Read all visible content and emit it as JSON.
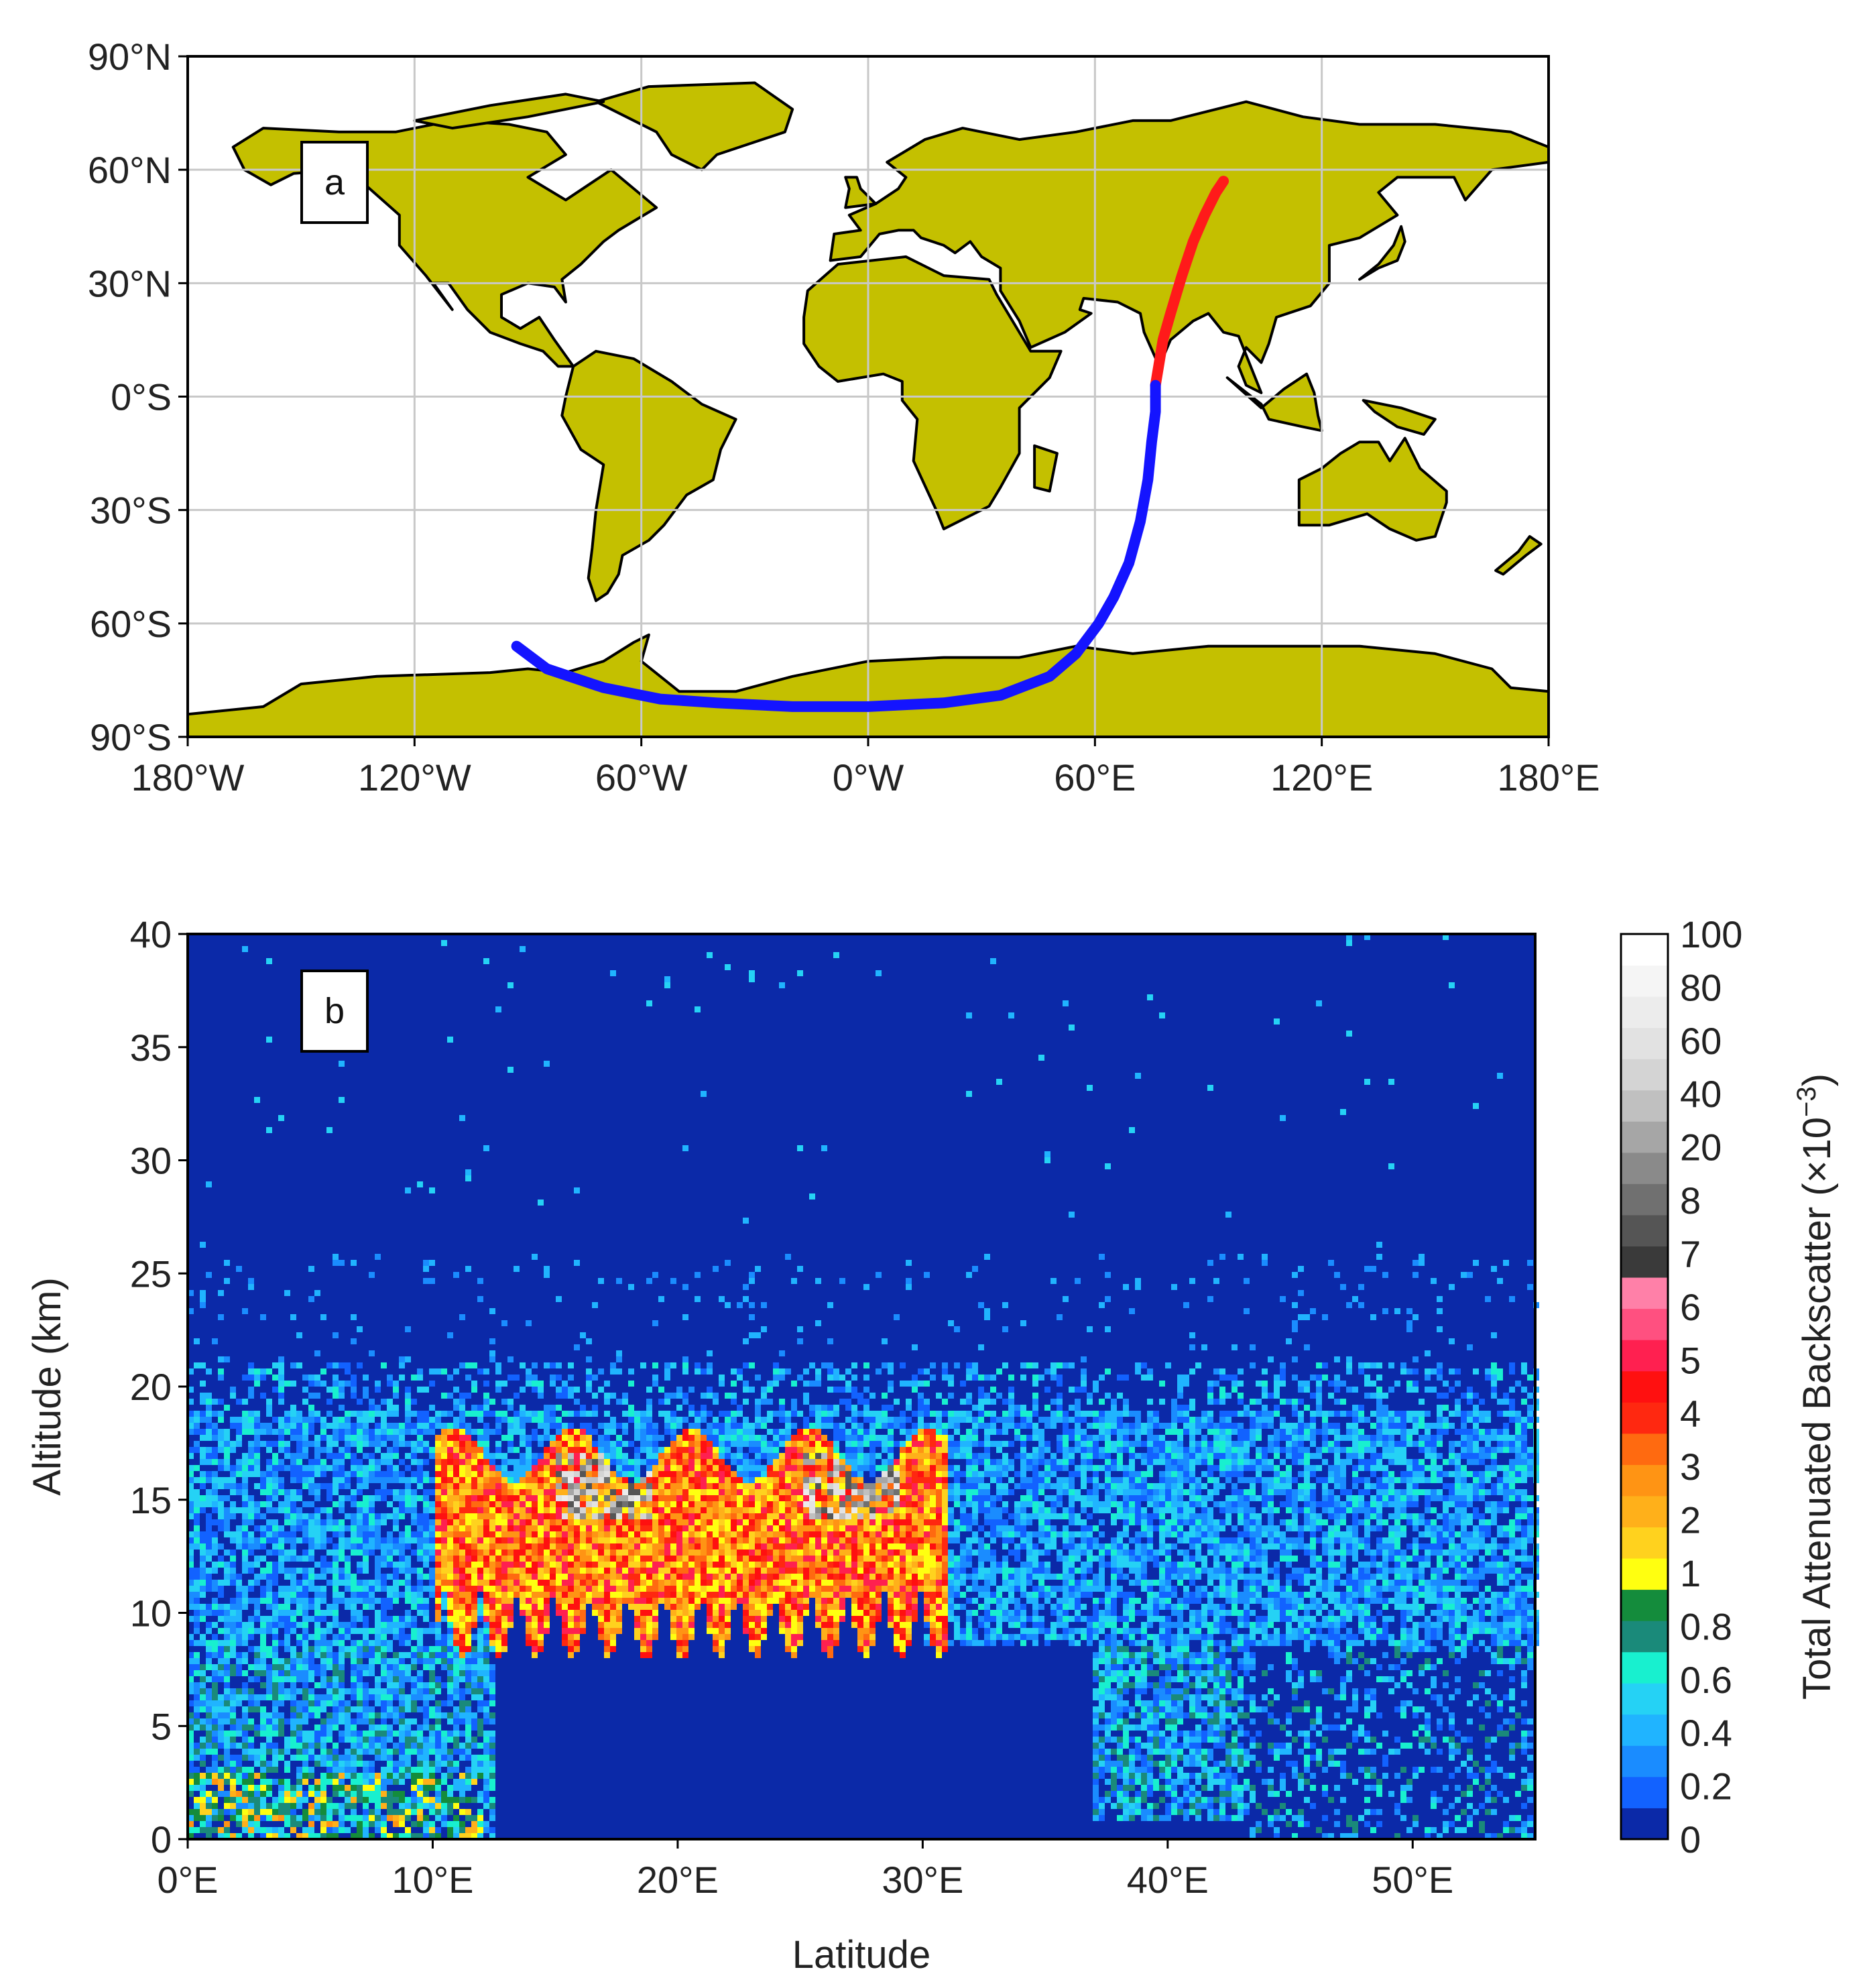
{
  "colors": {
    "land": "#c4c000",
    "coast": "#000000",
    "grid": "#c8c8c8",
    "track_day": "#ff1a1a",
    "track_night": "#1414ff",
    "background_dark": "#0b29a8"
  },
  "chart_data": [
    {
      "type": "map",
      "panel_label": "a",
      "x_ticks": [
        "180°W",
        "120°W",
        "60°W",
        "0°W",
        "60°E",
        "120°E",
        "180°E"
      ],
      "y_ticks": [
        "90°N",
        "60°N",
        "30°N",
        "0°S",
        "30°S",
        "60°S",
        "90°S"
      ],
      "xlim": [
        -180,
        180
      ],
      "ylim": [
        -90,
        90
      ],
      "grid": true,
      "series": [
        {
          "color": "red",
          "points": [
            [
              76,
              3
            ],
            [
              78,
              15
            ],
            [
              80,
              22
            ],
            [
              83,
              32
            ],
            [
              86,
              41
            ],
            [
              89,
              48
            ],
            [
              92,
              54
            ],
            [
              94,
              57
            ]
          ]
        },
        {
          "color": "blue",
          "points": [
            [
              -93,
              -66
            ],
            [
              -85,
              -72
            ],
            [
              -70,
              -77
            ],
            [
              -55,
              -80
            ],
            [
              -40,
              -81
            ],
            [
              -20,
              -82
            ],
            [
              0,
              -82
            ],
            [
              20,
              -81
            ],
            [
              35,
              -79
            ],
            [
              48,
              -74
            ],
            [
              55,
              -68
            ],
            [
              61,
              -60
            ],
            [
              65,
              -53
            ],
            [
              69,
              -44
            ],
            [
              72,
              -33
            ],
            [
              74,
              -22
            ],
            [
              75,
              -12
            ],
            [
              76,
              -4
            ],
            [
              76,
              3
            ]
          ]
        }
      ]
    },
    {
      "type": "heatmap",
      "panel_label": "b",
      "xlabel": "Latitude",
      "ylabel": "Altitude (km)",
      "x_ticks": [
        "0°E",
        "10°E",
        "20°E",
        "30°E",
        "40°E",
        "50°E"
      ],
      "y_ticks": [
        "0",
        "5",
        "10",
        "15",
        "20",
        "25",
        "30",
        "35",
        "40"
      ],
      "xlim": [
        0,
        55
      ],
      "ylim": [
        0,
        40
      ],
      "colorbar": {
        "label": "Total Attenuated Backscatter (×10",
        "label_exponent": "−3",
        "label_close": ")",
        "tick_labels": [
          "0",
          "0.2",
          "0.4",
          "0.6",
          "0.8",
          "1",
          "2",
          "3",
          "4",
          "5",
          "6",
          "7",
          "8",
          "20",
          "40",
          "60",
          "80",
          "100"
        ],
        "colors": [
          "#0b29a8",
          "#1262ff",
          "#1a8cff",
          "#20b4ff",
          "#25d2f5",
          "#18f0cf",
          "#1a8a7a",
          "#148c3c",
          "#ffff10",
          "#ffd21e",
          "#ffb01a",
          "#ff9414",
          "#ff6a10",
          "#ff2810",
          "#ff1010",
          "#ff2050",
          "#ff5080",
          "#ff80a8",
          "#3a3a3a",
          "#555555",
          "#707070",
          "#8a8a8a",
          "#a6a6a6",
          "#c0c0c0",
          "#d4d4d4",
          "#e2e2e2",
          "#ececec",
          "#f5f5f5",
          "#ffffff"
        ]
      },
      "features": [
        {
          "kind": "cirrus_dense",
          "lat_range": [
            10,
            31
          ],
          "alt_range": [
            12,
            19
          ]
        },
        {
          "kind": "aerosol_layer",
          "lat_range": [
            0,
            12.5
          ],
          "alt_range": [
            0,
            8.5
          ]
        },
        {
          "kind": "aerosol_layer",
          "lat_range": [
            37,
            43
          ],
          "alt_range": [
            1,
            8.5
          ]
        },
        {
          "kind": "noise_top",
          "alt": 21
        }
      ]
    }
  ]
}
